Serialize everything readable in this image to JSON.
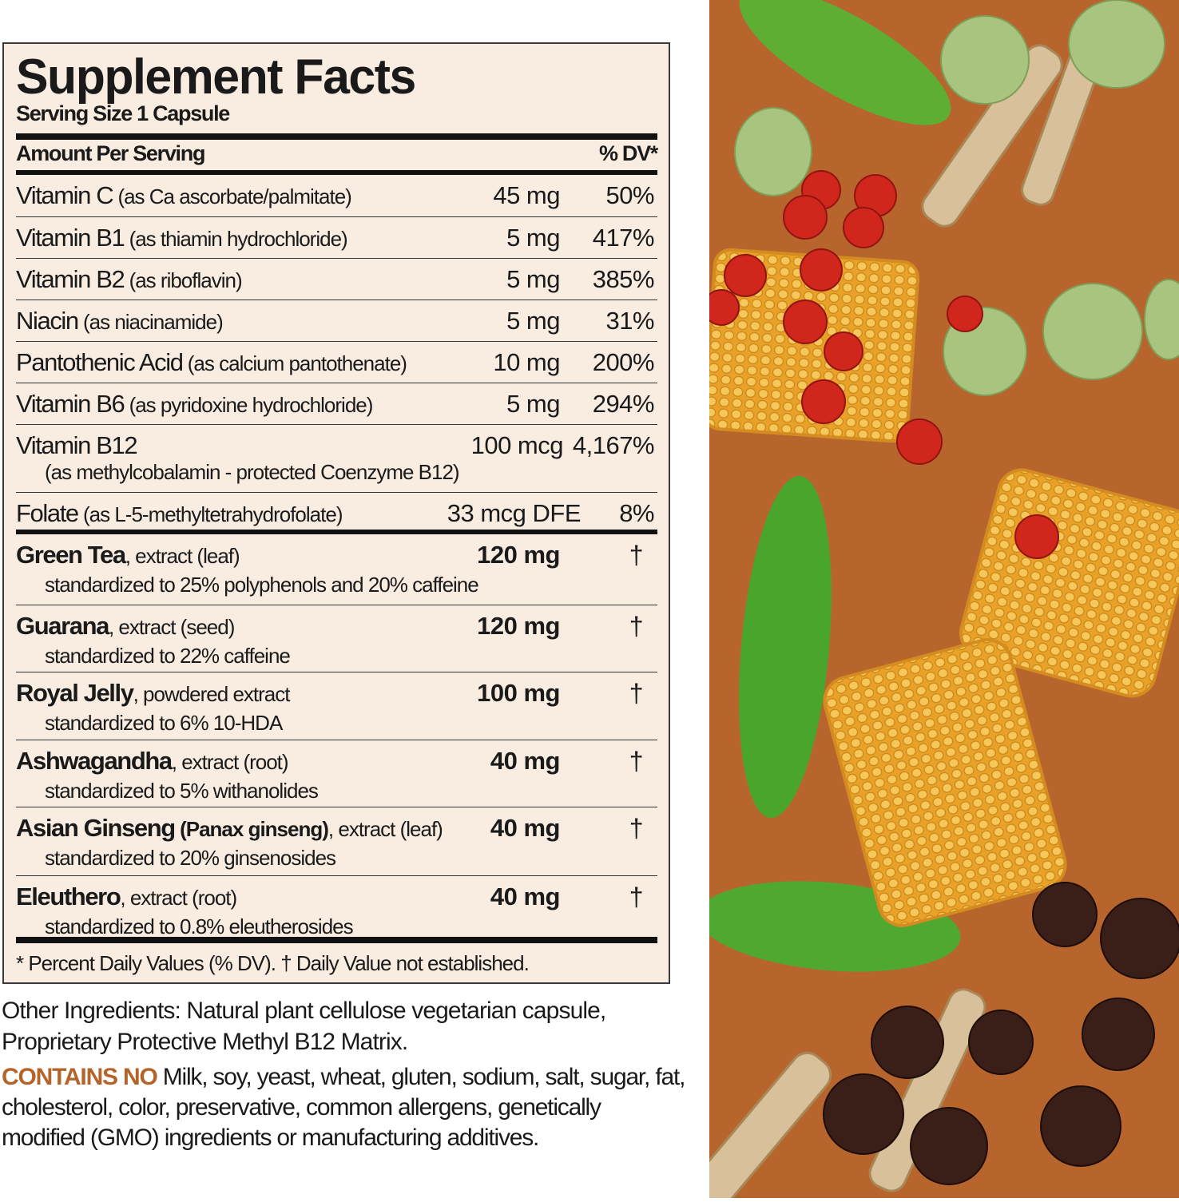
{
  "label": {
    "title": "Supplement Facts",
    "serving_size": "Serving Size 1 Capsule",
    "header_amount": "Amount Per Serving",
    "header_dv": "% DV*",
    "rows": [
      {
        "name": "Vitamin C",
        "detail": " (as Ca ascorbate/palmitate)",
        "amount": "45 mg",
        "dv": "50%"
      },
      {
        "name": "Vitamin B1",
        "detail": " (as thiamin hydrochloride)",
        "amount": "5 mg",
        "dv": "417%"
      },
      {
        "name": "Vitamin B2",
        "detail": " (as riboflavin)",
        "amount": "5 mg",
        "dv": "385%"
      },
      {
        "name": "Niacin",
        "detail": " (as niacinamide)",
        "amount": "5 mg",
        "dv": "31%"
      },
      {
        "name": "Pantothenic Acid",
        "detail": " (as calcium pantothenate)",
        "amount": "10 mg",
        "dv": "200%"
      },
      {
        "name": "Vitamin B6",
        "detail": " (as pyridoxine hydrochloride)",
        "amount": "5 mg",
        "dv": "294%"
      },
      {
        "name": "Vitamin B12",
        "detail": "",
        "sub": "(as methylcobalamin - protected Coenzyme B12)",
        "amount": "100 mcg",
        "dv": "4,167%"
      },
      {
        "name": "Folate",
        "detail": " (as L-5-methyltetrahydrofolate)",
        "amount": "33 mcg DFE",
        "dv": "8%"
      },
      {
        "name": "Green Tea",
        "detail": ", extract (leaf)",
        "sub": "standardized to 25% polyphenols and 20% caffeine",
        "amount": "120 mg",
        "dv": "†",
        "bold": true
      },
      {
        "name": "Guarana",
        "detail": ", extract (seed)",
        "sub": "standardized to 22% caffeine",
        "amount": "120 mg",
        "dv": "†",
        "bold": true
      },
      {
        "name": "Royal Jelly",
        "detail": ", powdered extract",
        "sub": "standardized to 6% 10-HDA",
        "amount": "100 mg",
        "dv": "†",
        "bold": true
      },
      {
        "name": "Ashwagandha",
        "detail": ", extract (root)",
        "sub": "standardized to 5% withanolides",
        "amount": "40 mg",
        "dv": "†",
        "bold": true
      },
      {
        "name": "Asian Ginseng",
        "detail_bold": " (Panax ginseng)",
        "detail": ", extract (leaf)",
        "sub": "standardized to 20% ginsenosides",
        "amount": "40 mg",
        "dv": "†",
        "bold": true
      },
      {
        "name": "Eleuthero",
        "detail": ", extract (root)",
        "sub": "standardized to 0.8% eleutherosides",
        "amount": "40 mg",
        "dv": "†",
        "bold": true
      }
    ],
    "footnote": "* Percent Daily Values (% DV). † Daily Value not established."
  },
  "other_ingredients": "Other Ingredients: Natural plant cellulose vegetarian capsule, Proprietary Protective Methyl B12 Matrix.",
  "contains_no": {
    "label": "CONTAINS NO",
    "text": " Milk, soy, yeast, wheat, gluten, sodium, salt, sugar, fat, cholesterol, color, preservative, common allergens, genetically modified (GMO) ingredients or manufacturing additives."
  },
  "colors": {
    "label_bg": "#f9ece1",
    "accent": "#b4642b",
    "art_bg": "#b8652d"
  },
  "image": {
    "subject": "green tea leaves, honeycomb, red berries, guarana seeds, ginseng roots"
  }
}
